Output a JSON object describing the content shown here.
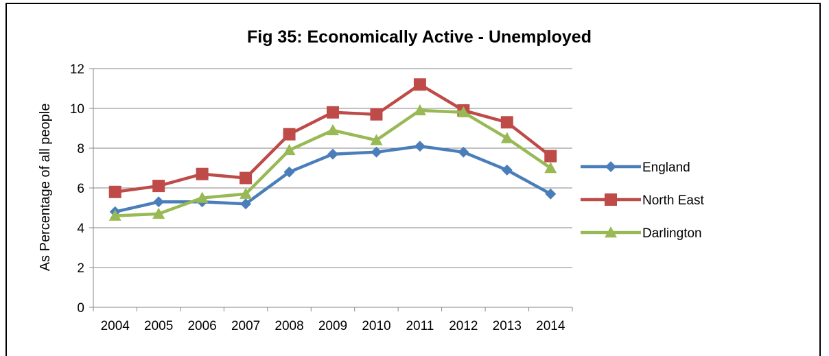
{
  "chart_data": {
    "type": "line",
    "title": "Fig 35: Economically Active - Unemployed",
    "xlabel": "",
    "ylabel": "As Percentage of all people",
    "categories": [
      "2004",
      "2005",
      "2006",
      "2007",
      "2008",
      "2009",
      "2010",
      "2011",
      "2012",
      "2013",
      "2014"
    ],
    "ylim": [
      0,
      12
    ],
    "yticks": [
      0,
      2,
      4,
      6,
      8,
      10,
      12
    ],
    "grid": true,
    "legend": "right",
    "series": [
      {
        "name": "England",
        "color": "#4a7ebb",
        "marker": "diamond",
        "values": [
          4.8,
          5.3,
          5.3,
          5.2,
          6.8,
          7.7,
          7.8,
          8.1,
          7.8,
          6.9,
          5.7
        ]
      },
      {
        "name": "North East",
        "color": "#be4b48",
        "marker": "square",
        "values": [
          5.8,
          6.1,
          6.7,
          6.5,
          8.7,
          9.8,
          9.7,
          11.2,
          9.9,
          9.3,
          7.6
        ]
      },
      {
        "name": "Darlington",
        "color": "#98b954",
        "marker": "triangle",
        "values": [
          4.6,
          4.7,
          5.5,
          5.7,
          7.9,
          8.9,
          8.4,
          9.9,
          9.8,
          8.5,
          7.0
        ]
      }
    ]
  }
}
